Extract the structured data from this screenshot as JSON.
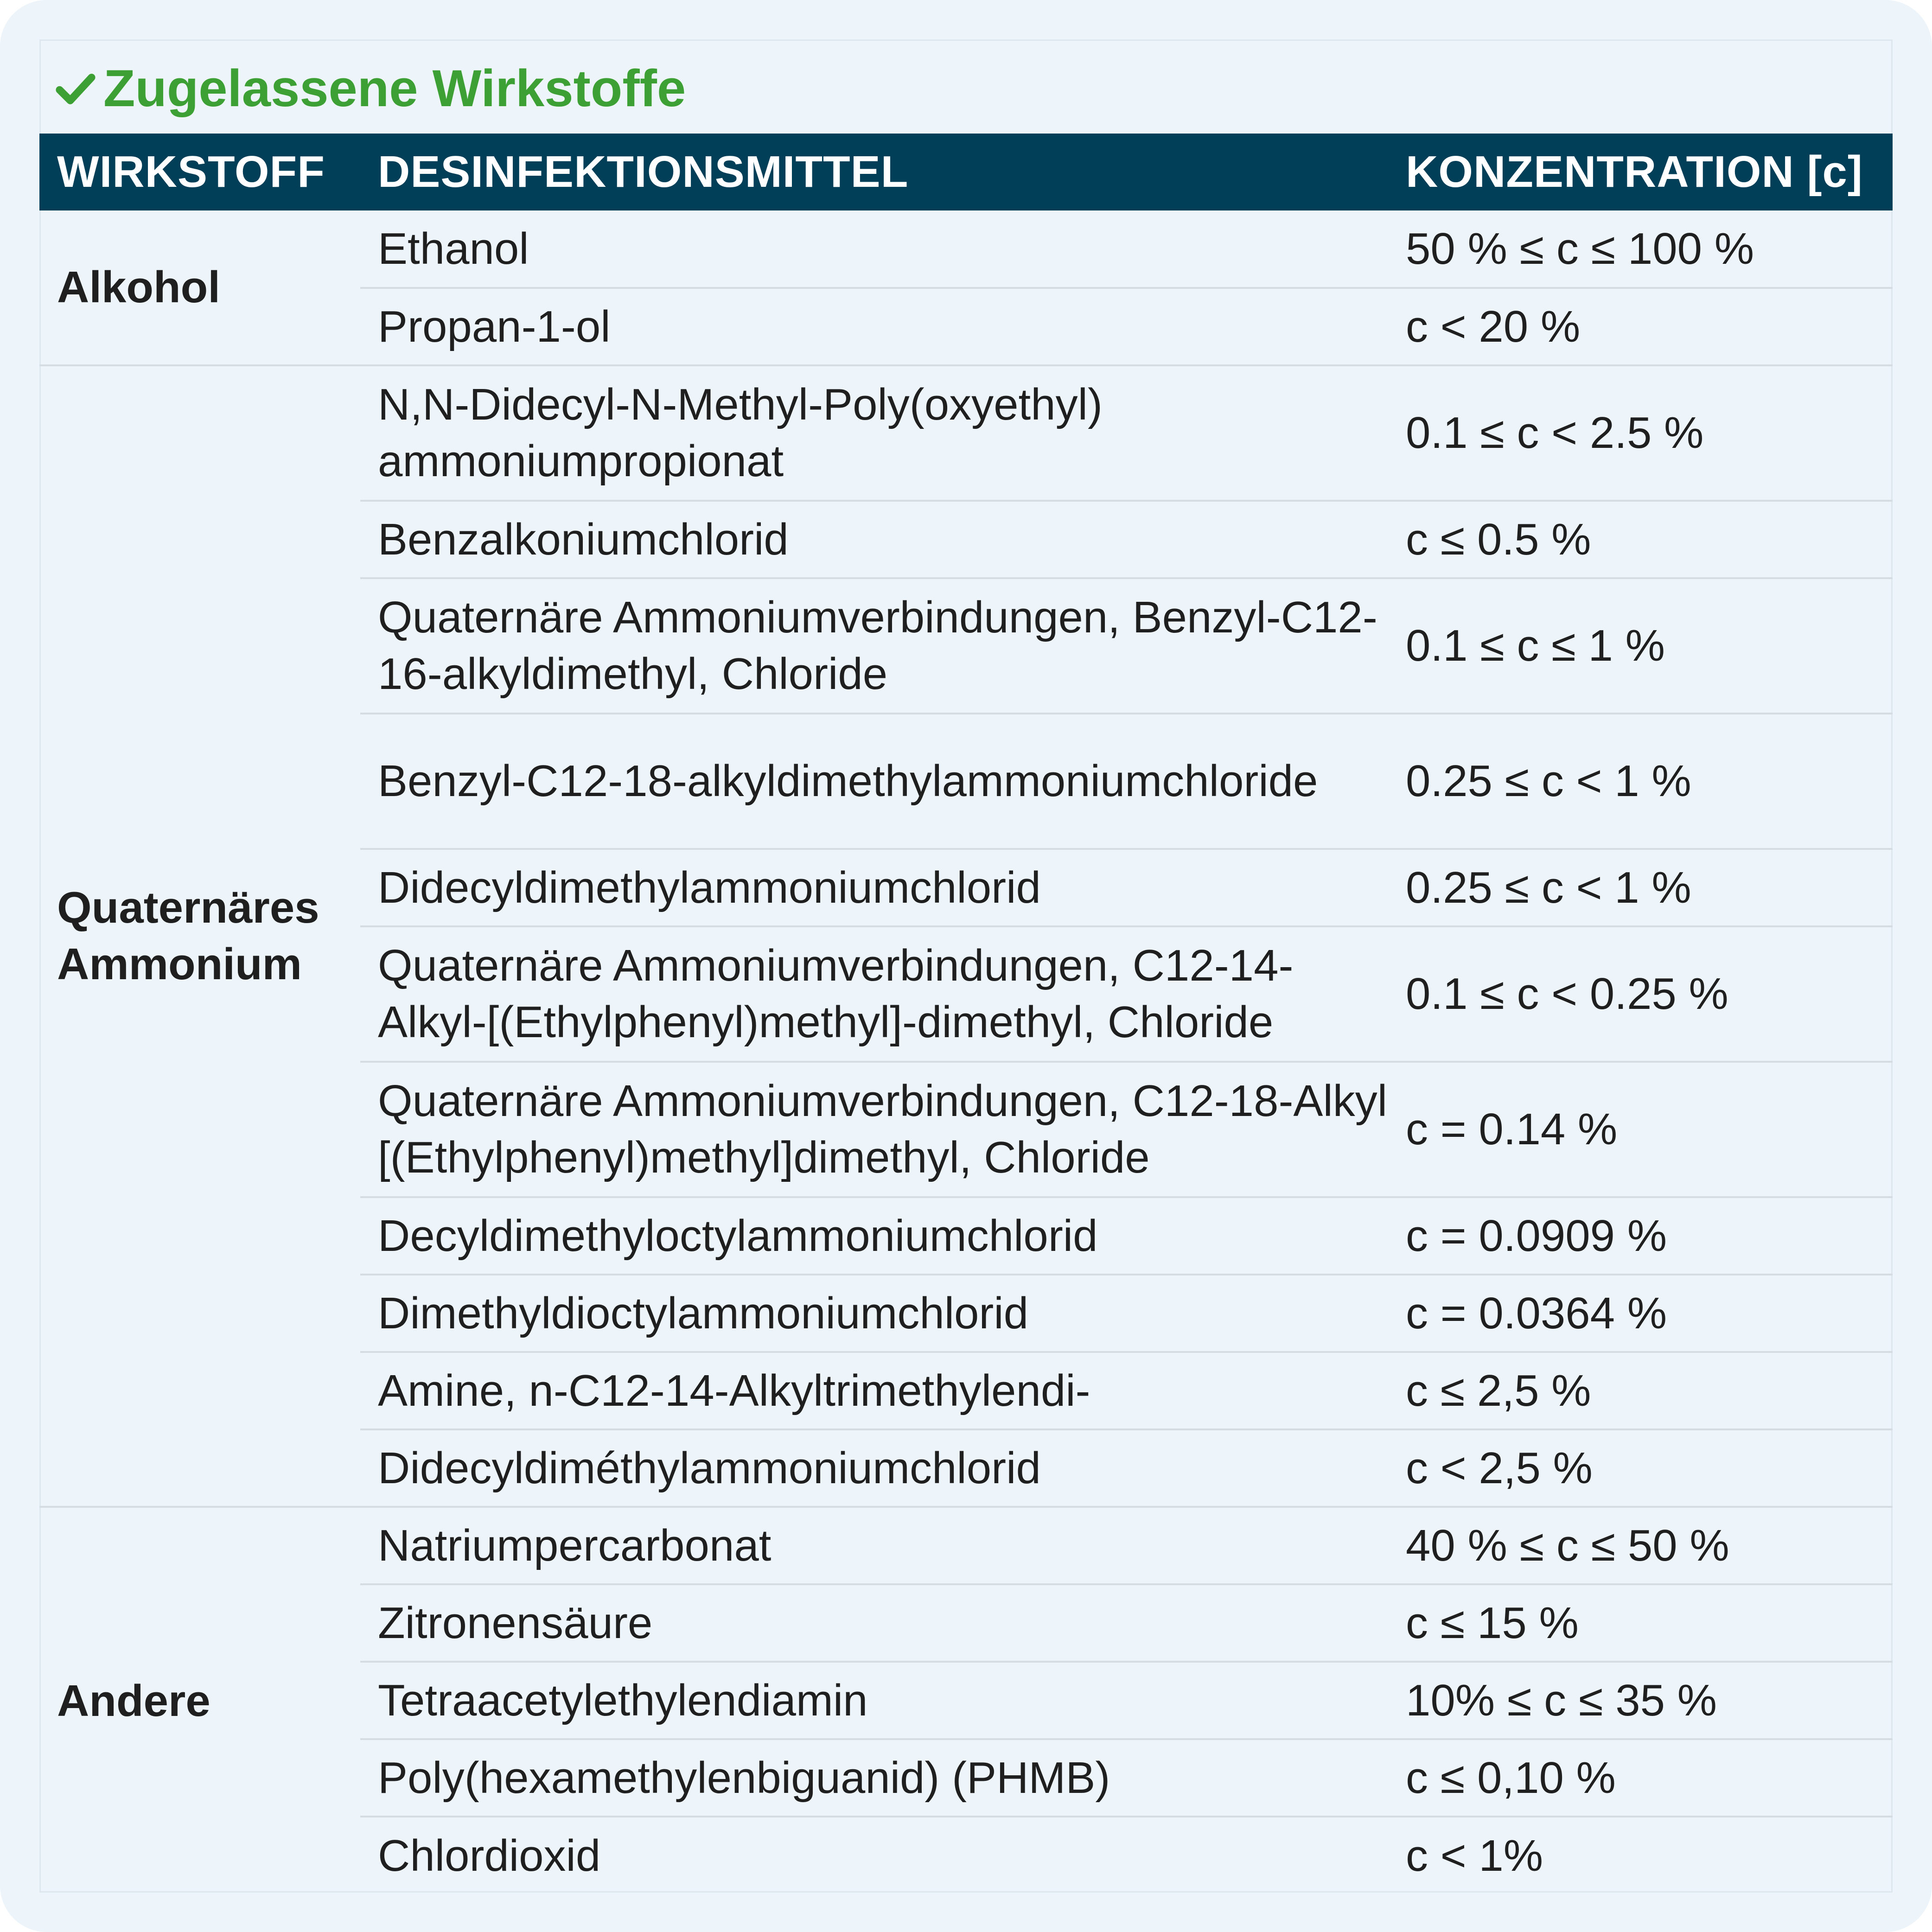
{
  "title": "Zugelassene Wirkstoffe",
  "title_icon": "checkmark-icon",
  "colors": {
    "title_green": "#3da035",
    "header_bg": "#013f58"
  },
  "headers": [
    "WIRKSTOFF",
    "DESINFEKTIONSMITTEL",
    "KONZENTRATION [c]"
  ],
  "groups": [
    {
      "category": "Alkohol",
      "rows": [
        {
          "substance": "Ethanol",
          "concentration": "50 % ≤ c ≤ 100 %"
        },
        {
          "substance": "Propan-1-ol",
          "concentration": "c < 20 %"
        }
      ]
    },
    {
      "category": "Quaternäres Ammonium",
      "rows": [
        {
          "substance": "N,N-Didecyl-N-Methyl-Poly(oxyethyl) ammoniumpropionat",
          "concentration": "0.1 ≤ c < 2.5 %"
        },
        {
          "substance": "Benzalkoniumchlorid",
          "concentration": "c ≤ 0.5 %"
        },
        {
          "substance": "Quaternäre Ammoniumverbindungen, Benzyl-C12-16-alkyldimethyl, Chloride",
          "concentration": "0.1 ≤ c ≤ 1 %"
        },
        {
          "substance": "Benzyl-C12-18-alkyldimethylammoniumchloride",
          "concentration": "0.25 ≤ c < 1 %"
        },
        {
          "substance": "Didecyldimethylammoniumchlorid",
          "concentration": "0.25 ≤ c < 1 %"
        },
        {
          "substance": "Quaternäre Ammoniumverbindungen, C12-14-Alkyl-[(Ethylphenyl)methyl]-dimethyl, Chloride",
          "concentration": "0.1 ≤ c < 0.25 %"
        },
        {
          "substance": "Quaternäre Ammoniumverbindungen, C12-18-Alkyl [(Ethylphenyl)methyl]dimethyl, Chloride",
          "concentration": "c = 0.14 %"
        },
        {
          "substance": "Decyldimethyloctylammoniumchlorid",
          "concentration": "c = 0.0909 %"
        },
        {
          "substance": "Dimethyldioctylammoniumchlorid",
          "concentration": "c = 0.0364 %"
        },
        {
          "substance": "Amine, n-C12-14-Alkyltrimethylendi-",
          "concentration": "c ≤ 2,5 %"
        },
        {
          "substance": "Didecyldiméthylammoniumchlorid",
          "concentration": "c < 2,5 %"
        }
      ]
    },
    {
      "category": "Andere",
      "rows": [
        {
          "substance": "Natriumpercarbonat",
          "concentration": "40 % ≤ c ≤ 50 %"
        },
        {
          "substance": "Zitronensäure",
          "concentration": "c ≤ 15 %"
        },
        {
          "substance": "Tetraacetylethylendiamin",
          "concentration": "10% ≤ c ≤ 35 %"
        },
        {
          "substance": "Poly(hexamethylenbiguanid) (PHMB)",
          "concentration": "c ≤ 0,10 %"
        },
        {
          "substance": "Chlordioxid",
          "concentration": "c < 1%"
        }
      ]
    }
  ]
}
